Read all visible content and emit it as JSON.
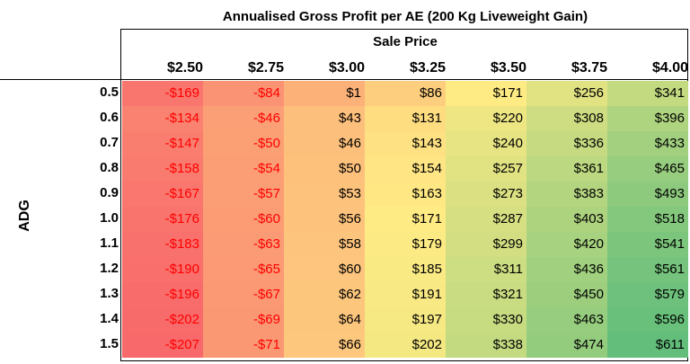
{
  "chart_data": {
    "type": "heatmap",
    "title": "Annualised Gross Profit per AE (200 Kg Liveweight Gain)",
    "subtitle": "Sale Price",
    "ylabel": "ADG",
    "columns": [
      "$2.50",
      "$2.75",
      "$3.00",
      "$3.25",
      "$3.50",
      "$3.75",
      "$4.00"
    ],
    "rows": [
      "0.5",
      "0.6",
      "0.7",
      "0.8",
      "0.9",
      "1.0",
      "1.1",
      "1.2",
      "1.3",
      "1.4",
      "1.5"
    ],
    "values": [
      [
        -169,
        -84,
        1,
        86,
        171,
        256,
        341
      ],
      [
        -134,
        -46,
        43,
        131,
        220,
        308,
        396
      ],
      [
        -147,
        -50,
        46,
        143,
        240,
        336,
        433
      ],
      [
        -158,
        -54,
        50,
        154,
        257,
        361,
        465
      ],
      [
        -167,
        -57,
        53,
        163,
        273,
        383,
        493
      ],
      [
        -176,
        -60,
        56,
        171,
        287,
        403,
        518
      ],
      [
        -183,
        -63,
        58,
        179,
        299,
        420,
        541
      ],
      [
        -190,
        -65,
        60,
        185,
        311,
        436,
        561
      ],
      [
        -196,
        -67,
        62,
        191,
        321,
        450,
        579
      ],
      [
        -202,
        -69,
        64,
        197,
        330,
        463,
        596
      ],
      [
        -207,
        -71,
        66,
        202,
        338,
        474,
        611
      ]
    ],
    "labels": [
      [
        "-$169",
        "-$84",
        "$1",
        "$86",
        "$171",
        "$256",
        "$341"
      ],
      [
        "-$134",
        "-$46",
        "$43",
        "$131",
        "$220",
        "$308",
        "$396"
      ],
      [
        "-$147",
        "-$50",
        "$46",
        "$143",
        "$240",
        "$336",
        "$433"
      ],
      [
        "-$158",
        "-$54",
        "$50",
        "$154",
        "$257",
        "$361",
        "$465"
      ],
      [
        "-$167",
        "-$57",
        "$53",
        "$163",
        "$273",
        "$383",
        "$493"
      ],
      [
        "-$176",
        "-$60",
        "$56",
        "$171",
        "$287",
        "$403",
        "$518"
      ],
      [
        "-$183",
        "-$63",
        "$58",
        "$179",
        "$299",
        "$420",
        "$541"
      ],
      [
        "-$190",
        "-$65",
        "$60",
        "$185",
        "$311",
        "$436",
        "$561"
      ],
      [
        "-$196",
        "-$67",
        "$62",
        "$191",
        "$321",
        "$450",
        "$579"
      ],
      [
        "-$202",
        "-$69",
        "$64",
        "$197",
        "$330",
        "$463",
        "$596"
      ],
      [
        "-$207",
        "-$71",
        "$66",
        "$202",
        "$338",
        "$474",
        "$611"
      ]
    ],
    "color_scale": {
      "min": "#f8696b",
      "mid": "#ffeb84",
      "max": "#63be7b"
    },
    "negative_text_color": "#ff0000"
  }
}
